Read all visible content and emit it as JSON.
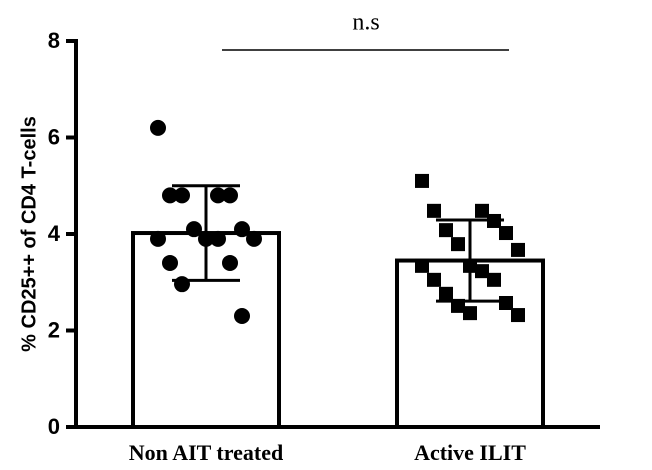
{
  "chart_data": {
    "type": "bar",
    "y_label": "% CD25++ of CD4 T-cells",
    "annotation": "n.s",
    "categories": [
      "Non AIT treated",
      "Active ILIT"
    ],
    "values": [
      4.02,
      3.45
    ],
    "errors": [
      0.98,
      0.84
    ],
    "markers": [
      "circle",
      "square"
    ],
    "points": [
      [
        6.2,
        4.8,
        4.8,
        4.8,
        4.8,
        4.1,
        4.1,
        3.9,
        3.9,
        3.9,
        3.9,
        3.4,
        3.4,
        2.96,
        2.3
      ],
      [
        5.1,
        4.48,
        4.48,
        4.27,
        4.08,
        4.02,
        3.79,
        3.67,
        3.34,
        3.34,
        3.23,
        3.05,
        3.05,
        2.76,
        2.57,
        2.51,
        2.32,
        2.36
      ]
    ],
    "ylim": [
      0,
      8
    ],
    "yticks": [
      0,
      2,
      4,
      6,
      8
    ]
  }
}
